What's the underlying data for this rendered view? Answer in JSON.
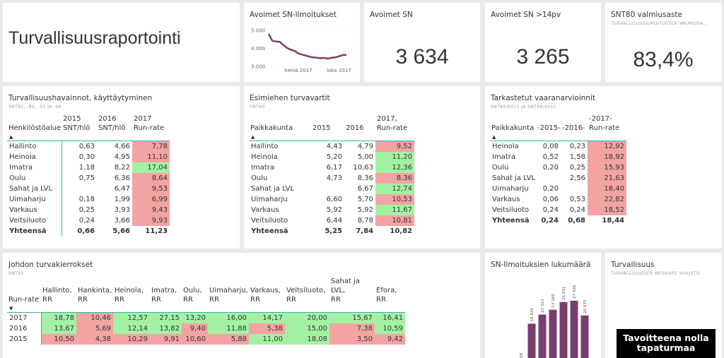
{
  "header": {
    "title": "Turvallisuusraportointi"
  },
  "chart_data": [
    {
      "type": "line",
      "title": "Avoimet SN-ilmoitukset",
      "categories": [
        null,
        null,
        null,
        null,
        null,
        null,
        null,
        null,
        "heinä 2017",
        null,
        null,
        null,
        null,
        null,
        null,
        null,
        null,
        null,
        null,
        "loka 2017",
        null,
        null
      ],
      "values": [
        4800,
        4420,
        4380,
        4360,
        4180,
        4020,
        3920,
        3860,
        3720,
        3660,
        3600,
        3540,
        3500,
        3480,
        3450,
        3470,
        3430,
        3480,
        3500,
        3560,
        3630,
        3634
      ],
      "color": "#7a3d6f",
      "ylim": [
        3000,
        5000
      ],
      "yticks": [
        {
          "value": 3000,
          "label": "3.000"
        },
        {
          "value": 4000,
          "label": "4.000"
        },
        {
          "value": 5000,
          "label": "5.000"
        }
      ],
      "grid": true
    },
    {
      "type": "bar",
      "title": "SN-Ilmoituksien lukumäärä",
      "categories": [
        null,
        null,
        null,
        null,
        null,
        null,
        null
      ],
      "values": [
        58,
        16826,
        21021,
        23269,
        26831,
        27426,
        20633
      ],
      "value_labels": [
        "58",
        "16 826",
        "21 021",
        "23 269",
        "26 831",
        "27 426",
        "20 633"
      ],
      "color": "#7a3d6f",
      "ylim": [
        0,
        30000
      ]
    }
  ],
  "kpis": [
    {
      "title": "Avoimet SN",
      "value": "3 634"
    },
    {
      "title": "Avoimet SN >14pv",
      "value": "3 265"
    },
    {
      "title": "SNT80 valmiusaste",
      "subtitle": "TURVALLISUUSILMOITUSTEN VALMIUSA...",
      "value": "83,4%"
    }
  ],
  "tables": [
    {
      "title": "Turvallisuushavainnot, käyttäytyminen",
      "subtitle": "SNT85, -86, -95 JA -96",
      "headers": [
        "Henkilöstöalue",
        "2015\nSNT/hlö",
        "2016\nSNT/hlö",
        "2017\nRun-rate"
      ],
      "rows": [
        {
          "cells": [
            "Hallinto",
            "0,63",
            "4,66",
            "7,78"
          ],
          "highlight": "#f4a3a3"
        },
        {
          "cells": [
            "Heinola",
            "0,30",
            "4,95",
            "11,10"
          ],
          "highlight": "#f4a3a3"
        },
        {
          "cells": [
            "Imatra",
            "1,18",
            "8,22",
            "17,04"
          ],
          "highlight": "#a3f2a3"
        },
        {
          "cells": [
            "Oulu",
            "0,75",
            "6,36",
            "8,64"
          ],
          "highlight": "#f4a3a3"
        },
        {
          "cells": [
            "Sahat ja LVL",
            null,
            "6,47",
            "9,53"
          ],
          "highlight": "#f4a3a3"
        },
        {
          "cells": [
            "Uimaharju",
            "0,18",
            "1,99",
            "6,99"
          ],
          "highlight": "#f4a3a3"
        },
        {
          "cells": [
            "Varkaus",
            "0,25",
            "3,93",
            "9,43"
          ],
          "highlight": "#f4a3a3"
        },
        {
          "cells": [
            "Veitsiluoto",
            "0,24",
            "3,66",
            "9,93"
          ],
          "highlight": "#f4a3a3"
        }
      ],
      "total": [
        "Yhteensä",
        "0,66",
        "5,66",
        "11,23"
      ]
    },
    {
      "title": "Esimiehen turvavartit",
      "subtitle": "SNT90",
      "headers": [
        "Paikkakunta",
        "2015",
        "2016",
        "2017,\nRun-rate"
      ],
      "rows": [
        {
          "cells": [
            "Hallinto",
            "4,43",
            "4,79",
            "9,52"
          ],
          "highlight": "#f4a3a3"
        },
        {
          "cells": [
            "Heinola",
            "5,20",
            "5,00",
            "11,20"
          ],
          "highlight": "#a3f2a3"
        },
        {
          "cells": [
            "Imatra",
            "6,17",
            "10,63",
            "12,36"
          ],
          "highlight": "#a3f2a3"
        },
        {
          "cells": [
            "Oulu",
            "4,73",
            "8,36",
            "8,36"
          ],
          "highlight": "#f4a3a3"
        },
        {
          "cells": [
            "Sahat ja LVL",
            null,
            "6,67",
            "12,74"
          ],
          "highlight": "#a3f2a3"
        },
        {
          "cells": [
            "Uimaharju",
            "6,60",
            "5,70",
            "10,53"
          ],
          "highlight": "#f4a3a3"
        },
        {
          "cells": [
            "Varkaus",
            "5,92",
            "5,92",
            "11,67"
          ],
          "highlight": "#a3f2a3"
        },
        {
          "cells": [
            "Veitsiluoto",
            "6,44",
            "8,78",
            "10,81"
          ],
          "highlight": "#f4a3a3"
        }
      ],
      "total": [
        "Yhteensä",
        "5,25",
        "7,84",
        "10,82"
      ]
    },
    {
      "title": "Tarkastetut vaaranarvioinnit",
      "subtitle": "SNT85/0011 JA SNT86/0011",
      "headers": [
        "Paikkakunta",
        "-2015-",
        "-2016-",
        "-2017-\nRun-rate"
      ],
      "rows": [
        {
          "cells": [
            "Heinola",
            "0,08",
            "0,23",
            "12,92"
          ],
          "highlight": "#f4a3a3"
        },
        {
          "cells": [
            "Imatra",
            "0,52",
            "1,58",
            "18,92"
          ],
          "highlight": "#f4a3a3"
        },
        {
          "cells": [
            "Oulu",
            "0,20",
            "0,25",
            "15,93"
          ],
          "highlight": "#f4a3a3"
        },
        {
          "cells": [
            "Sahat ja LVL",
            null,
            "2,56",
            "21,63"
          ],
          "highlight": "#f4a3a3"
        },
        {
          "cells": [
            "Uimaharju",
            "0,20",
            null,
            "18,40"
          ],
          "highlight": "#f4a3a3"
        },
        {
          "cells": [
            "Varkaus",
            "0,06",
            "0,53",
            "22,82"
          ],
          "highlight": "#f4a3a3"
        },
        {
          "cells": [
            "Veitsiluoto",
            "0,24",
            "0,24",
            "18,52"
          ],
          "highlight": "#f4a3a3"
        }
      ],
      "total": [
        "Yhteensä",
        "0,24",
        "0,68",
        "18,44"
      ]
    },
    {
      "title": "Johdon turvakierrokset",
      "subtitle": "SNT92",
      "headers": [
        "Run-rate",
        "Hallinto,\nRR",
        "Hankinta,\nRR",
        "Heinola,\nRR",
        "Imatra,\nRR",
        "Oulu,\nRR",
        "Uimaharju,\nRR",
        "Varkaus,\nRR",
        "Veitsiluoto,\nRR",
        "Sahat ja LVL,\nRR",
        "Efora,\nRR"
      ],
      "rows": [
        {
          "cells": [
            "2017",
            "18,78",
            "10,46",
            "12,57",
            "27,15",
            "13,20",
            "16,00",
            "14,17",
            "20,00",
            "15,67",
            "16,41"
          ],
          "highlights": [
            "#a3f2a3",
            "#f4a3a3",
            "#a3f2a3",
            "#a3f2a3",
            "#a3f2a3",
            "#a3f2a3",
            "#a3f2a3",
            "#a3f2a3",
            "#a3f2a3",
            "#a3f2a3"
          ]
        },
        {
          "cells": [
            "2016",
            "13,67",
            "5,69",
            "12,14",
            "13,82",
            "9,40",
            "11,88",
            "5,38",
            "15,00",
            "7,38",
            "10,59"
          ],
          "highlights": [
            "#a3f2a3",
            "#f4a3a3",
            "#a3f2a3",
            "#a3f2a3",
            "#f4a3a3",
            "#a3f2a3",
            "#f4a3a3",
            "#a3f2a3",
            "#f4a3a3",
            "#a3f2a3"
          ]
        },
        {
          "cells": [
            "2015",
            "10,50",
            "4,38",
            "10,29",
            "9,91",
            "10,60",
            "5,88",
            "11,00",
            "18,08",
            "3,50",
            "9,42"
          ],
          "highlights": [
            "#f4a3a3",
            "#f4a3a3",
            "#f4a3a3",
            "#f4a3a3",
            "#f4a3a3",
            "#f4a3a3",
            "#a3f2a3",
            "#a3f2a3",
            "#f4a3a3",
            "#f4a3a3"
          ]
        }
      ]
    }
  ],
  "link_tile": {
    "title": "Turvallisuus",
    "subtitle": "TURVALLISUUDEN WESHARE SIVUSTO",
    "banner": "Tavoitteena nolla\ntapaturmaa"
  }
}
